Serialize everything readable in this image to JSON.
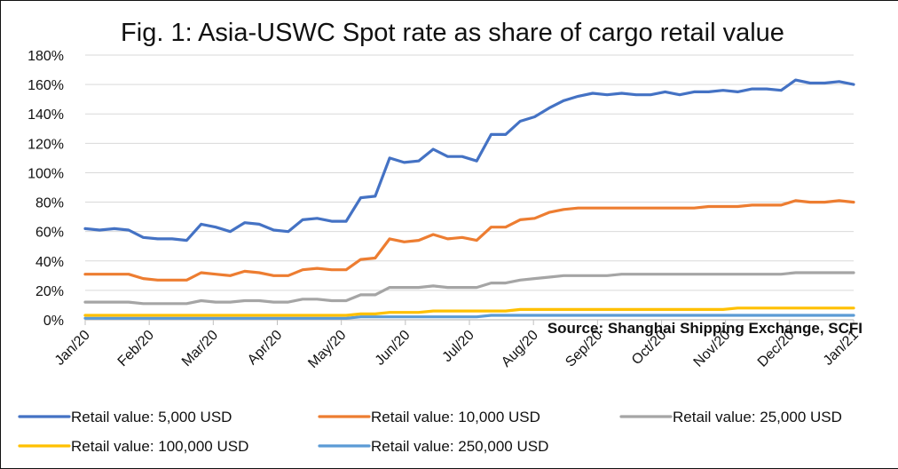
{
  "chart_data": {
    "type": "line",
    "title": "Fig. 1: Asia-USWC Spot rate as share of cargo retail value",
    "source": "Source: Shanghai Shipping Exchange, SCFI",
    "xlabel": "",
    "ylabel": "",
    "ylim": [
      0,
      180
    ],
    "y_ticks": [
      "0%",
      "20%",
      "40%",
      "60%",
      "80%",
      "100%",
      "120%",
      "140%",
      "160%",
      "180%"
    ],
    "x_ticks": [
      "Jan/20",
      "Feb/20",
      "Mar/20",
      "Apr/20",
      "May/20",
      "Jun/20",
      "Jul/20",
      "Aug/20",
      "Sep/20",
      "Oct/20",
      "Nov/20",
      "Dec/20",
      "Jan/21"
    ],
    "grid": true,
    "legend_position": "bottom",
    "points_per_series": 54,
    "series": [
      {
        "name": "Retail value: 5,000 USD",
        "color": "#4472C4",
        "values": [
          62,
          61,
          62,
          61,
          56,
          55,
          55,
          54,
          65,
          63,
          60,
          66,
          65,
          61,
          60,
          68,
          69,
          67,
          67,
          83,
          84,
          110,
          107,
          108,
          116,
          111,
          111,
          108,
          126,
          126,
          135,
          138,
          144,
          149,
          152,
          154,
          153,
          154,
          153,
          153,
          155,
          153,
          155,
          155,
          156,
          155,
          157,
          157,
          156,
          163,
          161,
          161,
          162,
          160
        ]
      },
      {
        "name": "Retail value: 10,000 USD",
        "color": "#ED7D31",
        "values": [
          31,
          31,
          31,
          31,
          28,
          27,
          27,
          27,
          32,
          31,
          30,
          33,
          32,
          30,
          30,
          34,
          35,
          34,
          34,
          41,
          42,
          55,
          53,
          54,
          58,
          55,
          56,
          54,
          63,
          63,
          68,
          69,
          73,
          75,
          76,
          76,
          76,
          76,
          76,
          76,
          76,
          76,
          76,
          77,
          77,
          77,
          78,
          78,
          78,
          81,
          80,
          80,
          81,
          80
        ]
      },
      {
        "name": "Retail value: 25,000 USD",
        "color": "#A5A5A5",
        "values": [
          12,
          12,
          12,
          12,
          11,
          11,
          11,
          11,
          13,
          12,
          12,
          13,
          13,
          12,
          12,
          14,
          14,
          13,
          13,
          17,
          17,
          22,
          22,
          22,
          23,
          22,
          22,
          22,
          25,
          25,
          27,
          28,
          29,
          30,
          30,
          30,
          30,
          31,
          31,
          31,
          31,
          31,
          31,
          31,
          31,
          31,
          31,
          31,
          31,
          32,
          32,
          32,
          32,
          32
        ]
      },
      {
        "name": "Retail value: 100,000 USD",
        "color": "#FFC000",
        "values": [
          3,
          3,
          3,
          3,
          3,
          3,
          3,
          3,
          3,
          3,
          3,
          3,
          3,
          3,
          3,
          3,
          3,
          3,
          3,
          4,
          4,
          5,
          5,
          5,
          6,
          6,
          6,
          6,
          6,
          6,
          7,
          7,
          7,
          7,
          7,
          7,
          7,
          7,
          7,
          7,
          7,
          7,
          7,
          7,
          7,
          8,
          8,
          8,
          8,
          8,
          8,
          8,
          8,
          8
        ]
      },
      {
        "name": "Retail value: 250,000 USD",
        "color": "#5B9BD5",
        "values": [
          1,
          1,
          1,
          1,
          1,
          1,
          1,
          1,
          1,
          1,
          1,
          1,
          1,
          1,
          1,
          1,
          1,
          1,
          1,
          2,
          2,
          2,
          2,
          2,
          2,
          2,
          2,
          2,
          3,
          3,
          3,
          3,
          3,
          3,
          3,
          3,
          3,
          3,
          3,
          3,
          3,
          3,
          3,
          3,
          3,
          3,
          3,
          3,
          3,
          3,
          3,
          3,
          3,
          3
        ]
      }
    ]
  },
  "colors": {
    "gridline": "#D9D9D9",
    "axis": "#BFBFBF",
    "text": "#111111"
  }
}
